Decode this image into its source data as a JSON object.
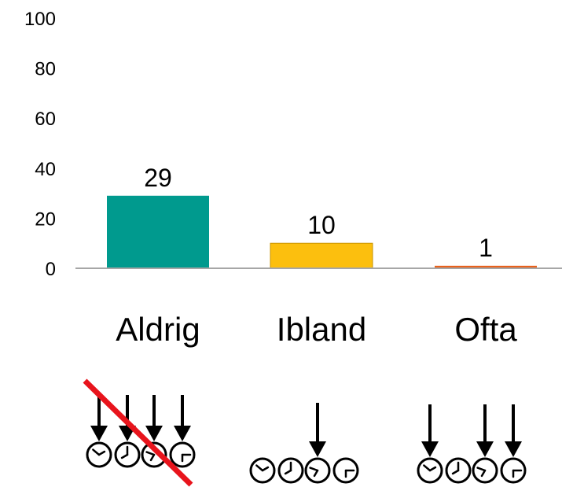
{
  "chart_data": {
    "type": "bar",
    "categories": [
      "Aldrig",
      "Ibland",
      "Ofta"
    ],
    "values": [
      29,
      10,
      1
    ],
    "data_labels": [
      "29",
      "10",
      "1"
    ],
    "colors": [
      "#009a8e",
      "#fcbf0e",
      "#e8621c"
    ],
    "ylim": [
      0,
      100
    ],
    "yticks": [
      "0",
      "20",
      "40",
      "60",
      "80",
      "100"
    ],
    "grid": false,
    "legend": "none"
  },
  "pictograms": [
    {
      "category": "Aldrig",
      "arrows": [
        0,
        1,
        2,
        3
      ],
      "crossed_out": true,
      "cross_color": "#e8141c"
    },
    {
      "category": "Ibland",
      "arrows": [
        2
      ],
      "crossed_out": false
    },
    {
      "category": "Ofta",
      "arrows": [
        0,
        2,
        3
      ],
      "crossed_out": false
    }
  ]
}
